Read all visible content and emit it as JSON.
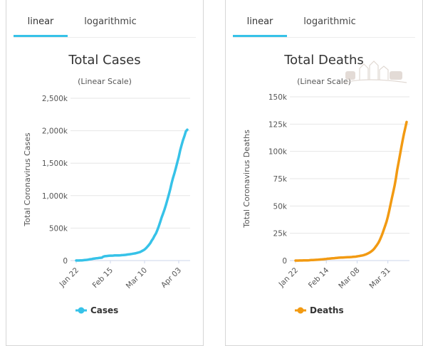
{
  "charts": [
    {
      "tabs": [
        {
          "label": "linear",
          "active": true
        },
        {
          "label": "logarithmic",
          "active": false
        }
      ],
      "tab_accent": "#36c2e8"
    },
    {
      "tabs": [
        {
          "label": "linear",
          "active": true
        },
        {
          "label": "logarithmic",
          "active": false
        }
      ],
      "tab_accent": "#36c2e8"
    }
  ],
  "chart_data": [
    {
      "type": "line",
      "title": "Total Cases",
      "subtitle": "(Linear Scale)",
      "ylabel": "Total Coronavirus Cases",
      "yticks": [
        "0",
        "500k",
        "1,000k",
        "1,500k",
        "2,000k",
        "2,500k"
      ],
      "ylim": [
        0,
        2500000
      ],
      "x_tick_labels": [
        "Jan 22",
        "Feb 15",
        "Mar 10",
        "Apr 03"
      ],
      "x_tick_index": [
        0,
        24,
        48,
        72
      ],
      "grid": true,
      "color": "#36c2e8",
      "series": [
        {
          "name": "Cases",
          "values": [
            580,
            850,
            1300,
            2000,
            2900,
            5600,
            8200,
            9800,
            11900,
            17400,
            20600,
            24600,
            28300,
            31500,
            34900,
            37600,
            40600,
            43100,
            45200,
            60400,
            66900,
            69100,
            71200,
            73300,
            75200,
            75700,
            76800,
            78600,
            78900,
            79500,
            80400,
            81400,
            82800,
            84300,
            86600,
            89000,
            92800,
            95200,
            98200,
            102000,
            106000,
            110000,
            114000,
            119000,
            126000,
            133000,
            145000,
            157000,
            170000,
            190000,
            214000,
            239000,
            268000,
            307000,
            339000,
            382000,
            418000,
            470000,
            530000,
            595000,
            664000,
            724000,
            786000,
            856000,
            934000,
            1013000,
            1095000,
            1192000,
            1275000,
            1348000,
            1428000,
            1513000,
            1597000,
            1697000,
            1779000,
            1855000,
            1918000,
            1990000,
            2015000
          ]
        }
      ],
      "legend": "bottom-center"
    },
    {
      "type": "line",
      "title": "Total Deaths",
      "subtitle": "(Linear Scale)",
      "ylabel": "Total Coronavirus Deaths",
      "yticks": [
        "0",
        "25k",
        "50k",
        "75k",
        "100k",
        "125k",
        "150k"
      ],
      "ylim": [
        0,
        150000
      ],
      "x_tick_labels": [
        "Jan 22",
        "Feb 14",
        "Mar 08",
        "Mar 31"
      ],
      "x_tick_index": [
        0,
        23,
        46,
        69
      ],
      "grid": true,
      "color": "#f29a12",
      "series": [
        {
          "name": "Deaths",
          "values": [
            17,
            18,
            26,
            42,
            56,
            82,
            131,
            133,
            171,
            213,
            259,
            362,
            426,
            492,
            565,
            638,
            724,
            813,
            910,
            1018,
            1115,
            1261,
            1383,
            1526,
            1669,
            1775,
            1873,
            2009,
            2126,
            2247,
            2360,
            2460,
            2618,
            2699,
            2763,
            2800,
            2858,
            2923,
            2977,
            3050,
            3117,
            3202,
            3285,
            3387,
            3494,
            3599,
            3827,
            4030,
            4255,
            4495,
            4720,
            5008,
            5413,
            5872,
            6435,
            7126,
            7905,
            8733,
            9867,
            11202,
            12915,
            14629,
            16416,
            18876,
            21800,
            24960,
            28350,
            31930,
            35660,
            40300,
            45690,
            51320,
            57190,
            62720,
            68570,
            75510,
            83200,
            89800,
            96600,
            103500,
            110100,
            116000,
            121500,
            127000
          ]
        }
      ],
      "legend": "bottom-center"
    }
  ]
}
